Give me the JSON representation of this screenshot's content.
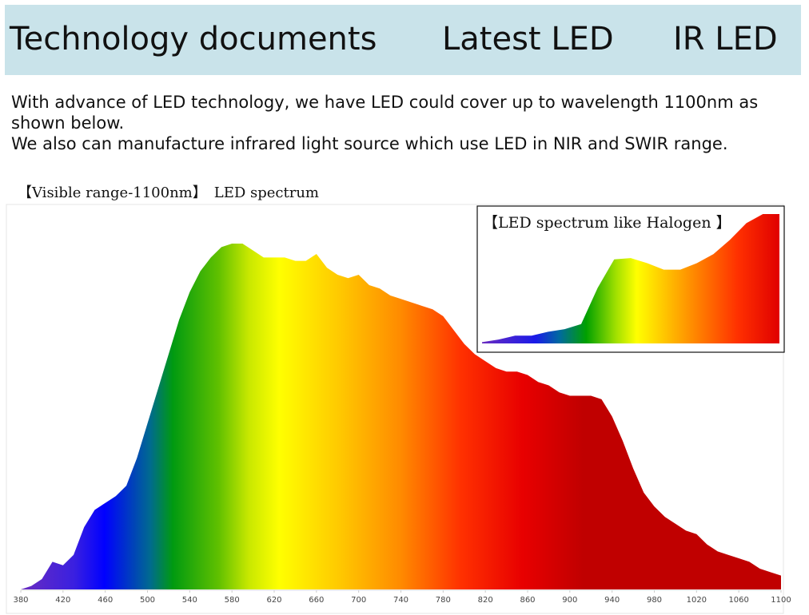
{
  "header": {
    "title": "Technology documents",
    "subtitle": "Latest LED",
    "topic": "IR LED"
  },
  "body": {
    "paragraphs": [
      "With advance of LED technology, we have LED could cover up to wavelength 1100nm as",
      "shown below.",
      "We also can manufacture infrared light source which use LED in NIR and SWIR range."
    ]
  },
  "chart_data": [
    {
      "type": "area",
      "title": "【Visible range-1100nm】　LED spectrum",
      "x": [
        380,
        390,
        400,
        410,
        420,
        430,
        440,
        450,
        460,
        470,
        480,
        490,
        500,
        510,
        520,
        530,
        540,
        550,
        560,
        570,
        580,
        590,
        600,
        610,
        620,
        630,
        640,
        650,
        660,
        670,
        680,
        690,
        700,
        710,
        720,
        730,
        740,
        750,
        760,
        770,
        780,
        790,
        800,
        810,
        820,
        830,
        840,
        850,
        860,
        870,
        880,
        890,
        900,
        910,
        920,
        930,
        940,
        950,
        960,
        970,
        980,
        990,
        1000,
        1010,
        1020,
        1030,
        1040,
        1050,
        1060,
        1070,
        1080,
        1090,
        1100
      ],
      "values": [
        0,
        1,
        3,
        8,
        7,
        10,
        18,
        23,
        25,
        27,
        30,
        38,
        48,
        58,
        68,
        78,
        86,
        92,
        96,
        99,
        100,
        100,
        98,
        96,
        96,
        96,
        95,
        95,
        97,
        93,
        91,
        90,
        91,
        88,
        87,
        85,
        84,
        83,
        82,
        81,
        79,
        75,
        71,
        68,
        66,
        64,
        63,
        63,
        62,
        60,
        59,
        57,
        56,
        56,
        56,
        55,
        50,
        43,
        35,
        28,
        24,
        21,
        19,
        17,
        16,
        13,
        11,
        10,
        9,
        8,
        6,
        5,
        4
      ],
      "xlim": [
        380,
        1100
      ],
      "xticks": [
        380,
        420,
        460,
        500,
        540,
        580,
        620,
        660,
        700,
        740,
        780,
        820,
        860,
        900,
        940,
        980,
        1020,
        1060,
        1100
      ]
    },
    {
      "type": "area",
      "title": "【LED spectrum like Halogen 】",
      "values": [
        1,
        3,
        6,
        6,
        9,
        11,
        15,
        43,
        65,
        66,
        62,
        57,
        57,
        62,
        69,
        80,
        93,
        100,
        100
      ]
    }
  ]
}
